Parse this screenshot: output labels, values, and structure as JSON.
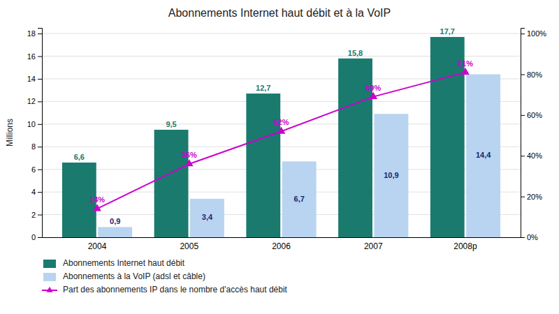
{
  "chart_data": {
    "type": "bar",
    "title": "Abonnements Internet haut débit et à la VoIP",
    "categories": [
      "2004",
      "2005",
      "2006",
      "2007",
      "2008p"
    ],
    "series": [
      {
        "name": "Abonnements Internet haut débit",
        "color": "#1a7a6e",
        "values": [
          6.6,
          9.5,
          12.7,
          15.8,
          17.7
        ],
        "value_labels": [
          "6,6",
          "9,5",
          "12,7",
          "15,8",
          "17,7"
        ]
      },
      {
        "name": "Abonnements à la VoIP (adsl et câble)",
        "color": "#b8d4f0",
        "values": [
          0.9,
          3.4,
          6.7,
          10.9,
          14.4
        ],
        "value_labels": [
          "0,9",
          "3,4",
          "6,7",
          "10,9",
          "14,4"
        ]
      },
      {
        "name": "Part des abonnements IP dans le nombre d'accès haut débit",
        "type": "line",
        "axis": "y2",
        "color": "#cc00cc",
        "marker": "triangle",
        "values": [
          14,
          36,
          52,
          69,
          81
        ],
        "value_labels": [
          "14%",
          "36%",
          "52%",
          "69%",
          "81%"
        ]
      }
    ],
    "ylabel": "Millions",
    "ylim": [
      0,
      18.5
    ],
    "yticks": [
      0,
      2,
      4,
      6,
      8,
      10,
      12,
      14,
      16,
      18
    ],
    "y2lim": [
      0,
      102.8
    ],
    "y2ticks": [
      {
        "value": 0,
        "label": "0%"
      },
      {
        "value": 20,
        "label": "20%"
      },
      {
        "value": 40,
        "label": "40%"
      },
      {
        "value": 60,
        "label": "60%"
      },
      {
        "value": 80,
        "label": "80%"
      },
      {
        "value": 100,
        "label": "100%"
      }
    ],
    "grid": true,
    "legend": "bottom",
    "data_labels": true
  }
}
